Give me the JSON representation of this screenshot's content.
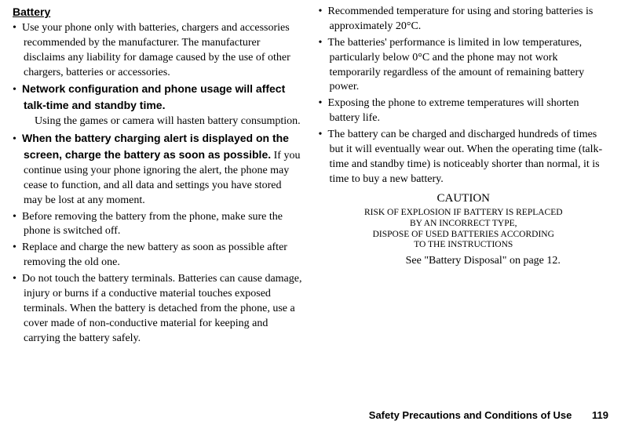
{
  "heading": "Battery",
  "left_bullets": [
    {
      "text": "Use your phone only with batteries, chargers and accessories recommended by the manufacturer. The manufacturer disclaims any liability for damage caused by the use of other chargers, batteries or accessories."
    },
    {
      "bold": "Network configuration and phone usage will affect talk-time and standby time.",
      "subline": "Using the games or camera will hasten battery consumption."
    },
    {
      "bold": "When the battery charging alert is displayed on the screen, charge the battery as soon as possible.",
      "cont": " If you continue using your phone ignoring the alert, the phone may cease to function, and all data and settings you have stored may be lost at any moment."
    },
    {
      "text": "Before removing the battery from the phone, make sure the phone is switched off."
    },
    {
      "text": "Replace and charge the new battery as soon as possible after removing the old one."
    },
    {
      "text": "Do not touch the battery terminals. Batteries can cause damage, injury or burns if a conductive material touches exposed terminals. When the battery is detached from the phone, use a cover made of non-conductive material for keeping and carrying the battery safely."
    }
  ],
  "right_bullets": [
    {
      "text": "Recommended temperature for using and storing batteries is approximately 20°C."
    },
    {
      "text": "The batteries' performance is limited in low temperatures, particularly below 0°C and the phone may not work temporarily regardless of the amount of remaining battery power."
    },
    {
      "text": "Exposing the phone to extreme temperatures will shorten battery life."
    },
    {
      "text": "The battery can be charged and discharged hundreds of times but it will eventually wear out. When the operating time (talk-time and standby time) is noticeably shorter than normal, it is time to buy a new battery."
    }
  ],
  "caution": {
    "heading": "CAUTION",
    "line1": "RISK OF EXPLOSION IF BATTERY IS REPLACED",
    "line2": "BY AN INCORRECT TYPE,",
    "line3": "DISPOSE OF USED BATTERIES ACCORDING",
    "line4": "TO THE INSTRUCTIONS"
  },
  "see_ref": "See \"Battery Disposal\" on page 12.",
  "footer": {
    "title": "Safety Precautions and Conditions of Use",
    "page": "119"
  }
}
